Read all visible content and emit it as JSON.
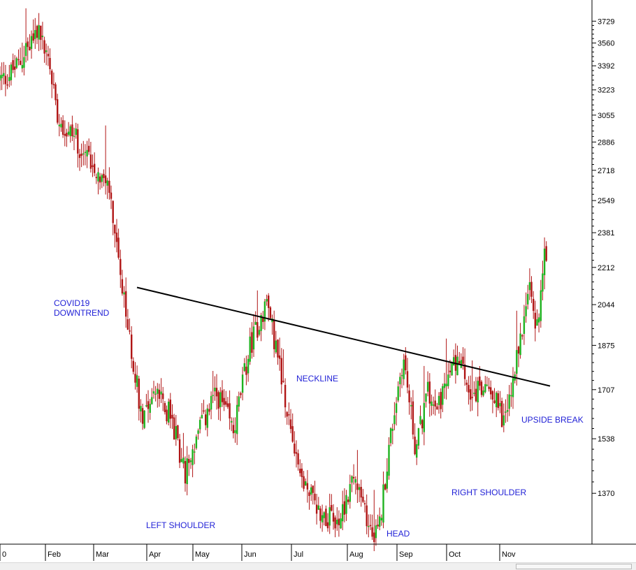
{
  "chart_data": {
    "type": "candlestick",
    "y_scale": "log",
    "ylim": [
      1230,
      3900
    ],
    "y_ticks": [
      1370,
      1538,
      1707,
      1875,
      2044,
      2212,
      2381,
      2549,
      2718,
      2886,
      3055,
      3223,
      3392,
      3560,
      3729
    ],
    "x_tick_labels": [
      "0",
      "Feb",
      "Mar",
      "Apr",
      "May",
      "Jun",
      "Jul",
      "Aug",
      "Sep",
      "Oct",
      "Nov"
    ],
    "colors": {
      "up": "#1fb21f",
      "down": "#b01515",
      "neckline": "#000000",
      "annotation": "#1f1fd6"
    },
    "price_path": [
      [
        "Jan",
        3300
      ],
      [
        "Jan",
        3420
      ],
      [
        "Jan",
        3680
      ],
      [
        "Feb",
        3400
      ],
      [
        "Feb",
        3080
      ],
      [
        "Feb",
        2950
      ],
      [
        "Feb",
        2940
      ],
      [
        "Feb",
        2830
      ],
      [
        "Feb",
        2790
      ],
      [
        "Mar",
        2700
      ],
      [
        "Mar",
        2600
      ],
      [
        "Mar",
        2150
      ],
      [
        "Mar",
        1870
      ],
      [
        "Mar",
        1620
      ],
      [
        "Apr",
        1700
      ],
      [
        "Apr",
        1620
      ],
      [
        "Apr",
        1430
      ],
      [
        "May",
        1580
      ],
      [
        "May",
        1690
      ],
      [
        "May",
        1560
      ],
      [
        "Jun",
        1870
      ],
      [
        "Jun",
        2060
      ],
      [
        "Jun",
        1720
      ],
      [
        "Jul",
        1420
      ],
      [
        "Jul",
        1320
      ],
      [
        "Jul",
        1280
      ],
      [
        "Aug",
        1420
      ],
      [
        "Aug",
        1300
      ],
      [
        "Aug",
        1250
      ],
      [
        "Aug",
        1550
      ],
      [
        "Sep",
        1830
      ],
      [
        "Sep",
        1500
      ],
      [
        "Sep",
        1700
      ],
      [
        "Sep",
        1670
      ],
      [
        "Oct",
        1820
      ],
      [
        "Oct",
        1690
      ],
      [
        "Oct",
        1720
      ],
      [
        "Nov",
        1600
      ],
      [
        "Nov",
        1700
      ],
      [
        "Nov",
        1890
      ],
      [
        "Nov",
        2150
      ],
      [
        "Nov",
        1920
      ],
      [
        "Nov",
        2300
      ]
    ],
    "annotations": [
      {
        "text_lines": [
          "COVID19",
          "DOWNTREND"
        ]
      },
      {
        "text_lines": [
          "NECKLINE"
        ]
      },
      {
        "text_lines": [
          "LEFT SHOULDER"
        ]
      },
      {
        "text_lines": [
          "HEAD"
        ]
      },
      {
        "text_lines": [
          "RIGHT SHOULDER"
        ]
      },
      {
        "text_lines": [
          "UPSIDE BREAK"
        ]
      }
    ],
    "neckline": {
      "start": [
        "Mar",
        2120
      ],
      "end": [
        "Nov",
        1720
      ]
    }
  }
}
